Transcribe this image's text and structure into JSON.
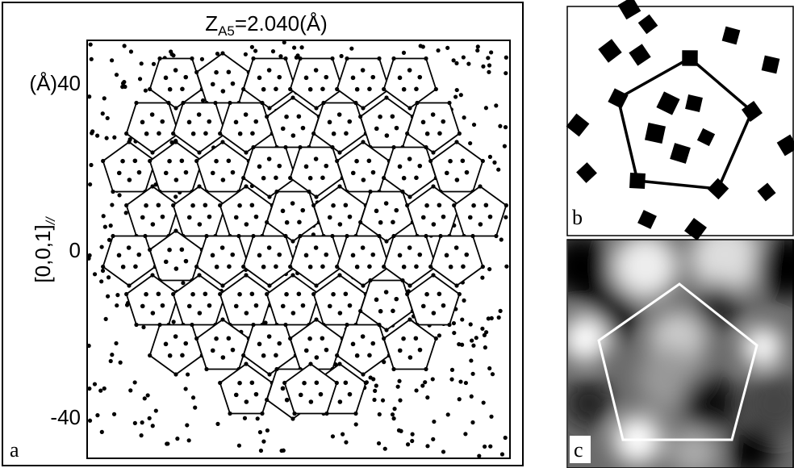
{
  "panel_a": {
    "label": "a",
    "title": {
      "main": "Z",
      "sub": "A5",
      "rest": "=2.040(Å)"
    },
    "y_axis_label": {
      "main": "[0,0,1]",
      "sub": "//"
    },
    "y_ticks": [
      "(Å)40",
      "0",
      "-40"
    ]
  },
  "panel_b": {
    "label": "b"
  },
  "panel_c": {
    "label": "c"
  }
}
